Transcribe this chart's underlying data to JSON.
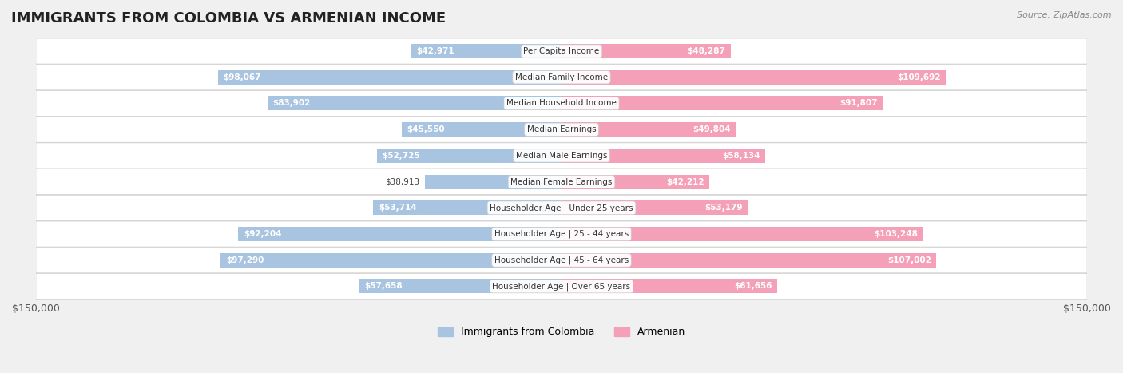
{
  "title": "IMMIGRANTS FROM COLOMBIA VS ARMENIAN INCOME",
  "source": "Source: ZipAtlas.com",
  "categories": [
    "Per Capita Income",
    "Median Family Income",
    "Median Household Income",
    "Median Earnings",
    "Median Male Earnings",
    "Median Female Earnings",
    "Householder Age | Under 25 years",
    "Householder Age | 25 - 44 years",
    "Householder Age | 45 - 64 years",
    "Householder Age | Over 65 years"
  ],
  "colombia_values": [
    42971,
    98067,
    83902,
    45550,
    52725,
    38913,
    53714,
    92204,
    97290,
    57658
  ],
  "armenian_values": [
    48287,
    109692,
    91807,
    49804,
    58134,
    42212,
    53179,
    103248,
    107002,
    61656
  ],
  "colombia_labels": [
    "$42,971",
    "$98,067",
    "$83,902",
    "$45,550",
    "$52,725",
    "$38,913",
    "$53,714",
    "$92,204",
    "$97,290",
    "$57,658"
  ],
  "armenian_labels": [
    "$48,287",
    "$109,692",
    "$91,807",
    "$49,804",
    "$58,134",
    "$42,212",
    "$53,179",
    "$103,248",
    "$107,002",
    "$61,656"
  ],
  "colombia_color": "#a8c4e0",
  "armenian_color": "#f4a0b8",
  "colombia_color_bold": "#7bafd4",
  "armenian_color_bold": "#f07898",
  "max_value": 150000,
  "background_color": "#f5f5f5",
  "row_bg_color": "#ebebeb",
  "legend_colombia": "Immigrants from Colombia",
  "legend_armenian": "Armenian"
}
